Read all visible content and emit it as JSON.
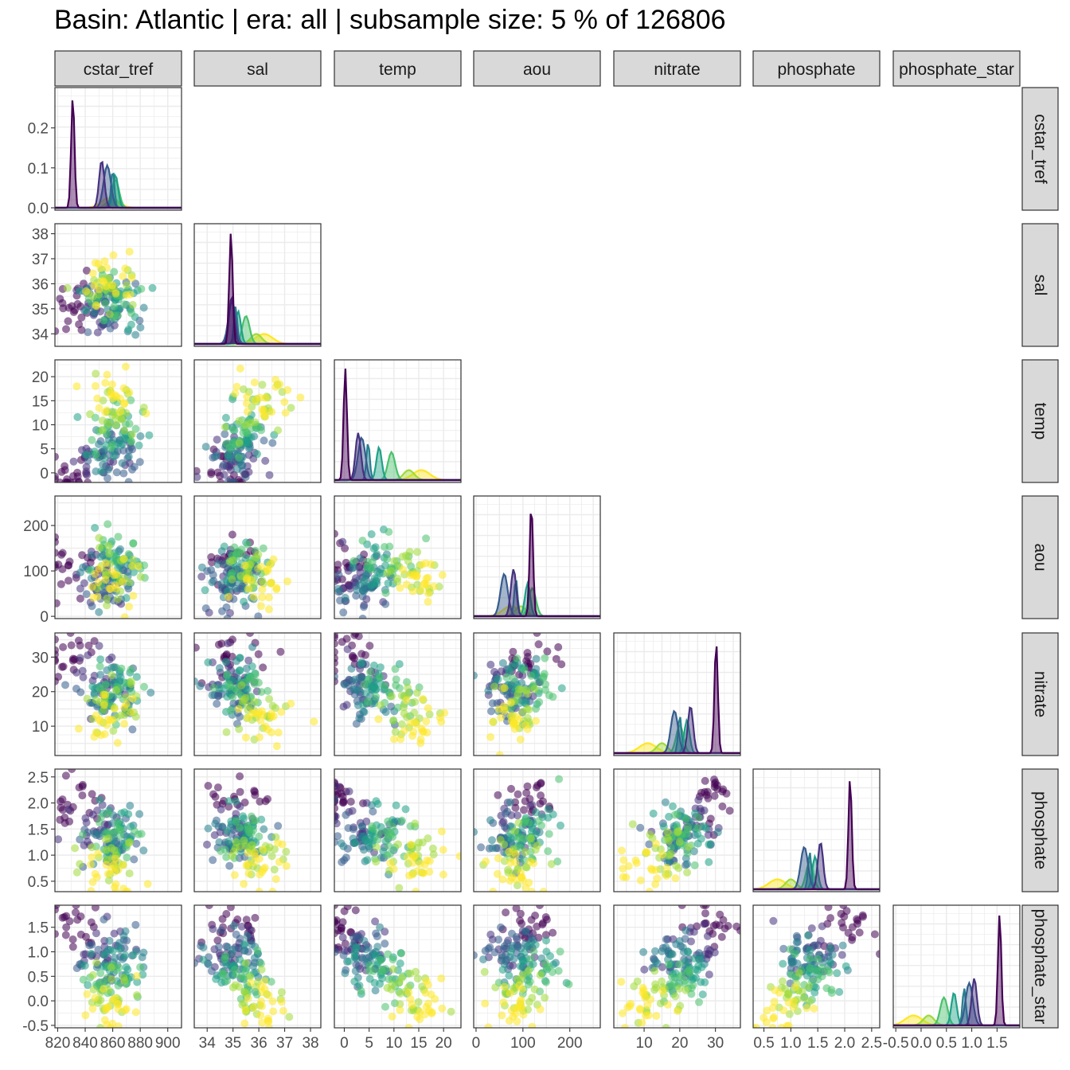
{
  "title": "Basin: Atlantic | era: all | subsample size: 5 % of 126806",
  "palette": [
    "#440154",
    "#46327e",
    "#365c8d",
    "#277f8e",
    "#1fa187",
    "#4ac16d",
    "#a0da39",
    "#fde725"
  ],
  "chart_data": {
    "type": "scatter",
    "layout": "pairs-matrix-lower-triangle",
    "variables": [
      "cstar_tref",
      "sal",
      "temp",
      "aou",
      "nitrate",
      "phosphate",
      "phosphate_star"
    ],
    "strip_labels": [
      "cstar_tref",
      "sal",
      "temp",
      "aou",
      "nitrate",
      "phosphate",
      "phosphate_star"
    ],
    "ranges": {
      "cstar_tref": [
        818,
        910
      ],
      "sal": [
        33.5,
        38.4
      ],
      "temp": [
        -2,
        23.5
      ],
      "aou": [
        -5,
        265
      ],
      "nitrate": [
        1.5,
        37
      ],
      "phosphate": [
        0.3,
        2.65
      ],
      "phosphate_star": [
        -0.55,
        1.95
      ]
    },
    "ticks": {
      "cstar_tref": {
        "x": [
          "820",
          "840",
          "860",
          "880",
          "900"
        ],
        "y": []
      },
      "sal": {
        "x": [
          "34",
          "35",
          "36",
          "37",
          "38"
        ],
        "y": [
          "34",
          "35",
          "36",
          "37",
          "38"
        ]
      },
      "temp": {
        "x": [
          "0",
          "5",
          "10",
          "15",
          "20"
        ],
        "y": [
          "0",
          "5",
          "10",
          "15",
          "20"
        ]
      },
      "aou": {
        "x": [
          "0",
          "100",
          "200"
        ],
        "y": [
          "0",
          "100",
          "200"
        ]
      },
      "nitrate": {
        "x": [
          "10",
          "20",
          "30"
        ],
        "y": [
          "10",
          "20",
          "30"
        ]
      },
      "phosphate": {
        "x": [
          "0.5",
          "1.0",
          "1.5",
          "2.0",
          "2.5"
        ],
        "y": [
          "0.5",
          "1.0",
          "1.5",
          "2.0",
          "2.5"
        ]
      },
      "phosphate_star": {
        "x": [
          "-0.5",
          "0.0",
          "0.5",
          "1.0",
          "1.5"
        ],
        "y": [
          "-0.5",
          "0.0",
          "0.5",
          "1.0",
          "1.5"
        ]
      }
    },
    "density_y_ticks": {
      "values": [
        0.0,
        0.1,
        0.2
      ],
      "labels": [
        "0.0",
        "0.1",
        "0.2"
      ],
      "max": 0.295
    },
    "scatter_style": {
      "alpha": 0.55,
      "point_radius": 5
    },
    "groups": [
      {
        "id": 0,
        "color": "#440154",
        "cstar_tref": 831,
        "sal": 34.92,
        "temp": 0.2,
        "aou": 118,
        "nitrate": 30.2,
        "phosphate": 2.1,
        "phosphate_star": 1.55
      },
      {
        "id": 1,
        "color": "#46327e",
        "cstar_tref": 852,
        "sal": 34.95,
        "temp": 2.8,
        "aou": 80,
        "nitrate": 23.0,
        "phosphate": 1.55,
        "phosphate_star": 1.05
      },
      {
        "id": 2,
        "color": "#365c8d",
        "cstar_tref": 856,
        "sal": 34.96,
        "temp": 3.5,
        "aou": 60,
        "nitrate": 18.5,
        "phosphate": 1.25,
        "phosphate_star": 0.95
      },
      {
        "id": 3,
        "color": "#277f8e",
        "cstar_tref": 860,
        "sal": 35.1,
        "temp": 4.8,
        "aou": 85,
        "nitrate": 20.0,
        "phosphate": 1.35,
        "phosphate_star": 0.85
      },
      {
        "id": 4,
        "color": "#1fa187",
        "cstar_tref": 862,
        "sal": 35.2,
        "temp": 7.0,
        "aou": 110,
        "nitrate": 22.0,
        "phosphate": 1.45,
        "phosphate_star": 0.65
      },
      {
        "id": 5,
        "color": "#4ac16d",
        "cstar_tref": 862,
        "sal": 35.5,
        "temp": 9.5,
        "aou": 120,
        "nitrate": 20.0,
        "phosphate": 1.35,
        "phosphate_star": 0.45
      },
      {
        "id": 6,
        "color": "#a0da39",
        "cstar_tref": 860,
        "sal": 35.9,
        "temp": 13.0,
        "aou": 95,
        "nitrate": 15.0,
        "phosphate": 1.0,
        "phosphate_star": 0.15
      },
      {
        "id": 7,
        "color": "#fde725",
        "cstar_tref": 858,
        "sal": 36.2,
        "temp": 15.5,
        "aou": 75,
        "nitrate": 11.0,
        "phosphate": 0.75,
        "phosphate_star": -0.15
      }
    ]
  }
}
